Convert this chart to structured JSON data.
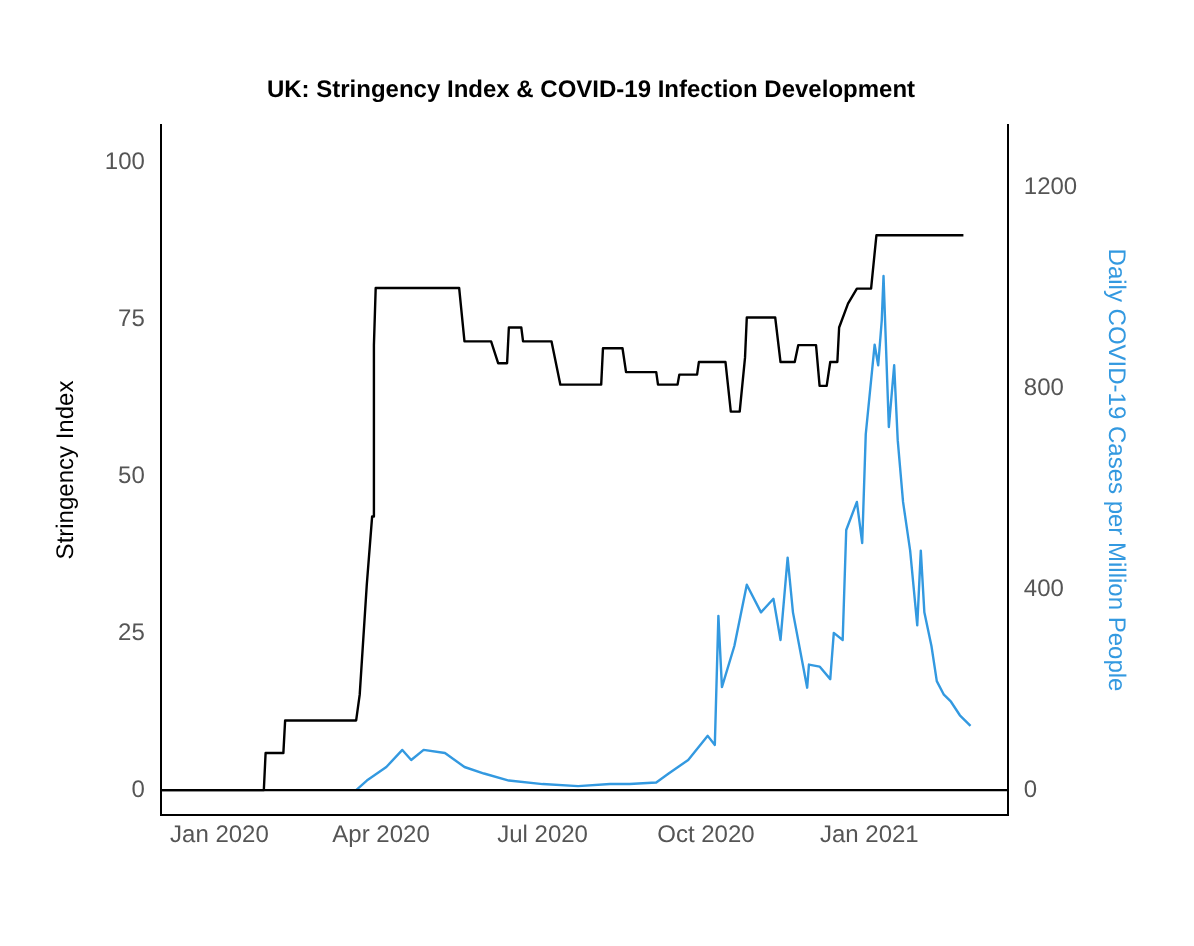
{
  "chart_data": {
    "type": "line",
    "title": "UK: Stringency Index & COVID-19 Infection Development",
    "ylabel": "Stringency Index",
    "y2label": "Daily COVID-19 Cases per Million People",
    "xlim": [
      "2019-11-29",
      "2021-03-20"
    ],
    "xticks": [
      {
        "value": "2020-01-01",
        "label": "Jan 2020"
      },
      {
        "value": "2020-04-01",
        "label": "Apr 2020"
      },
      {
        "value": "2020-07-01",
        "label": "Jul 2020"
      },
      {
        "value": "2020-10-01",
        "label": "Oct 2020"
      },
      {
        "value": "2021-01-01",
        "label": "Jan 2021"
      }
    ],
    "ylim": [
      -4,
      106
    ],
    "yticks": [
      0,
      25,
      50,
      75,
      100
    ],
    "y2lim": [
      -50,
      1325
    ],
    "y2ticks": [
      0,
      400,
      800,
      1200
    ],
    "grid": false,
    "legend": false,
    "marker": "none",
    "line_style": "solid",
    "ref_lines": [
      {
        "axis": "y",
        "value": 0,
        "color": "#000000"
      }
    ],
    "series": [
      {
        "color": "#000000",
        "x": [
          "2019-11-29",
          "2020-01-26",
          "2020-01-27",
          "2020-02-06",
          "2020-02-07",
          "2020-03-18",
          "2020-03-20",
          "2020-03-24",
          "2020-03-27",
          "2020-03-28",
          "2020-03-29",
          "2020-05-15",
          "2020-05-18",
          "2020-06-02",
          "2020-06-06",
          "2020-06-11",
          "2020-06-12",
          "2020-06-19",
          "2020-06-20",
          "2020-07-06",
          "2020-07-11",
          "2020-08-03",
          "2020-08-04",
          "2020-08-15",
          "2020-08-17",
          "2020-09-03",
          "2020-09-04",
          "2020-09-15",
          "2020-09-16",
          "2020-09-26",
          "2020-09-27",
          "2020-10-12",
          "2020-10-15",
          "2020-10-20",
          "2020-10-23",
          "2020-10-24",
          "2020-11-09",
          "2020-11-12",
          "2020-11-20",
          "2020-11-22",
          "2020-12-02",
          "2020-12-04",
          "2020-12-08",
          "2020-12-10",
          "2020-12-14",
          "2020-12-15",
          "2020-12-20",
          "2020-12-25",
          "2021-01-02",
          "2021-01-05",
          "2021-02-23"
        ],
        "values": [
          0,
          0,
          5.9,
          5.9,
          11.1,
          11.1,
          15.2,
          32.8,
          43.6,
          70.9,
          80,
          80,
          71.5,
          71.5,
          68,
          68,
          73.7,
          73.7,
          71.5,
          71.5,
          64.6,
          64.6,
          70.4,
          70.4,
          66.6,
          66.6,
          64.6,
          64.6,
          66.2,
          66.2,
          68.2,
          68.2,
          60.3,
          60.3,
          68.9,
          75.3,
          75.3,
          68.2,
          68.2,
          70.9,
          70.9,
          64.4,
          64.4,
          68.2,
          68.2,
          73.7,
          77.5,
          79.9,
          79.9,
          88.4,
          88.4
        ]
      },
      {
        "color": "#3399e0",
        "axis": "y2",
        "x": [
          "2020-03-18",
          "2020-03-24",
          "2020-04-04",
          "2020-04-13",
          "2020-04-18",
          "2020-04-25",
          "2020-05-07",
          "2020-05-18",
          "2020-05-29",
          "2020-06-12",
          "2020-07-01",
          "2020-07-21",
          "2020-08-08",
          "2020-08-19",
          "2020-09-03",
          "2020-09-10",
          "2020-09-21",
          "2020-10-02",
          "2020-10-06",
          "2020-10-08",
          "2020-10-10",
          "2020-10-17",
          "2020-10-24",
          "2020-11-01",
          "2020-11-08",
          "2020-11-12",
          "2020-11-16",
          "2020-11-19",
          "2020-11-27",
          "2020-11-28",
          "2020-12-04",
          "2020-12-10",
          "2020-12-12",
          "2020-12-17",
          "2020-12-19",
          "2020-12-25",
          "2020-12-28",
          "2020-12-30",
          "2021-01-04",
          "2021-01-06",
          "2021-01-08",
          "2021-01-09",
          "2021-01-12",
          "2021-01-15",
          "2021-01-17",
          "2021-01-20",
          "2021-01-24",
          "2021-01-28",
          "2021-01-30",
          "2021-02-01",
          "2021-02-05",
          "2021-02-08",
          "2021-02-12",
          "2021-02-16",
          "2021-02-21",
          "2021-02-27"
        ],
        "values": [
          0,
          19,
          46,
          80,
          60,
          80,
          74,
          46,
          33,
          19,
          12,
          8,
          12,
          12,
          15,
          33,
          60,
          108,
          90,
          347,
          205,
          287,
          409,
          354,
          381,
          299,
          463,
          354,
          204,
          250,
          246,
          221,
          313,
          299,
          518,
          574,
          492,
          709,
          887,
          846,
          935,
          1024,
          723,
          846,
          697,
          574,
          477,
          328,
          477,
          354,
          287,
          217,
          190,
          176,
          149,
          128
        ]
      }
    ]
  }
}
